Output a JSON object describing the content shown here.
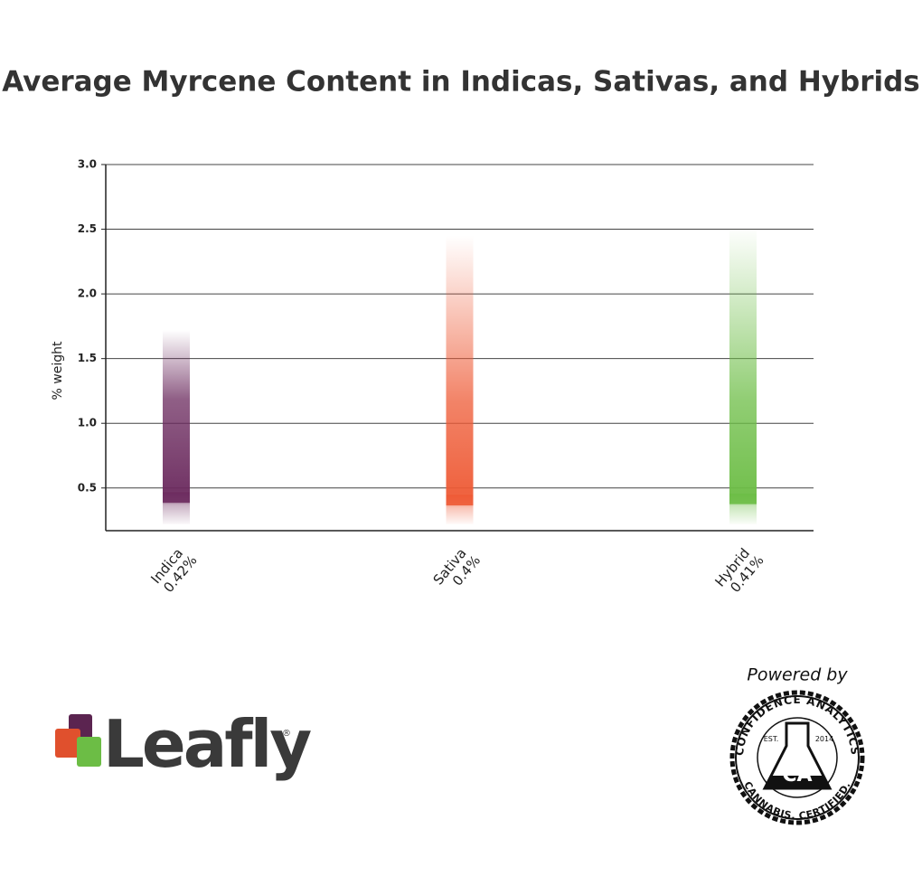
{
  "chart_data": {
    "type": "bar",
    "title": "Average Myrcene Content in Indicas, Sativas, and Hybrids",
    "y_label": "% weight",
    "categories": [
      "Indica",
      "Sativa",
      "Hybrid"
    ],
    "values": [
      0.42,
      0.4,
      0.41
    ],
    "value_labels": [
      "0.42%",
      "0.4%",
      "0.41%"
    ],
    "low": [
      0.22,
      0.22,
      0.22
    ],
    "high": [
      1.72,
      2.45,
      2.52
    ],
    "colors": [
      "#6b2a5e",
      "#ee5a35",
      "#6cbd45"
    ],
    "ylim": [
      0.17,
      3.0
    ],
    "yticks": [
      0.5,
      {
        "value": 1,
        "label": "1.0"
      },
      1.5,
      {
        "value": 2,
        "label": "2.0"
      },
      2.5,
      {
        "value": 3,
        "label": "3.0"
      }
    ],
    "grid": true
  },
  "footer": {
    "leafly": {
      "name": "Leafly",
      "mark": "®"
    },
    "seal": {
      "powered_by": "Powered by",
      "top": "CONFIDENCE ANALYTICS",
      "bottom": "CANNABIS. CERTIFIED.",
      "est": "EST.",
      "year": "2014",
      "initials": "CA"
    }
  }
}
